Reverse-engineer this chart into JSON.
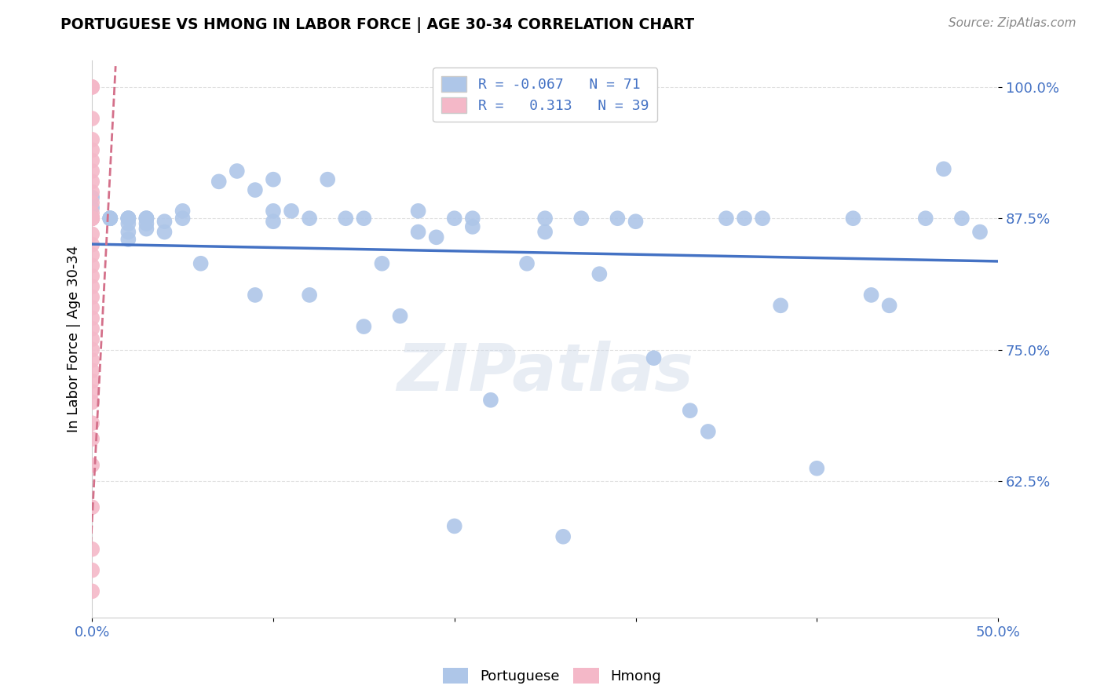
{
  "title": "PORTUGUESE VS HMONG IN LABOR FORCE | AGE 30-34 CORRELATION CHART",
  "source": "Source: ZipAtlas.com",
  "ylabel": "In Labor Force | Age 30-34",
  "xlim": [
    0.0,
    0.5
  ],
  "ylim": [
    0.495,
    1.025
  ],
  "yticks": [
    0.625,
    0.75,
    0.875,
    1.0
  ],
  "ytick_labels": [
    "62.5%",
    "75.0%",
    "87.5%",
    "100.0%"
  ],
  "xticks": [
    0.0,
    0.1,
    0.2,
    0.3,
    0.4,
    0.5
  ],
  "xtick_labels": [
    "0.0%",
    "",
    "",
    "",
    "",
    "50.0%"
  ],
  "legend_R_portuguese": "-0.067",
  "legend_N_portuguese": "71",
  "legend_R_hmong": "0.313",
  "legend_N_hmong": "39",
  "portuguese_color": "#aec6e8",
  "hmong_color": "#f4b8c8",
  "portuguese_line_color": "#4472c4",
  "hmong_line_color": "#d4708a",
  "watermark": "ZIPatlas",
  "portuguese_x": [
    0.0,
    0.0,
    0.0,
    0.01,
    0.01,
    0.01,
    0.01,
    0.02,
    0.02,
    0.02,
    0.02,
    0.02,
    0.02,
    0.02,
    0.03,
    0.03,
    0.03,
    0.03,
    0.03,
    0.04,
    0.04,
    0.05,
    0.05,
    0.06,
    0.07,
    0.08,
    0.09,
    0.09,
    0.1,
    0.1,
    0.1,
    0.11,
    0.12,
    0.12,
    0.13,
    0.14,
    0.15,
    0.15,
    0.16,
    0.17,
    0.18,
    0.18,
    0.19,
    0.2,
    0.2,
    0.21,
    0.21,
    0.22,
    0.24,
    0.25,
    0.25,
    0.26,
    0.27,
    0.28,
    0.29,
    0.3,
    0.31,
    0.33,
    0.34,
    0.35,
    0.36,
    0.37,
    0.38,
    0.4,
    0.42,
    0.43,
    0.44,
    0.46,
    0.47,
    0.48,
    0.49
  ],
  "portuguese_y": [
    0.875,
    0.885,
    0.895,
    0.875,
    0.875,
    0.875,
    0.875,
    0.875,
    0.875,
    0.875,
    0.875,
    0.87,
    0.862,
    0.855,
    0.875,
    0.875,
    0.875,
    0.87,
    0.865,
    0.872,
    0.862,
    0.875,
    0.882,
    0.832,
    0.91,
    0.92,
    0.902,
    0.802,
    0.872,
    0.882,
    0.912,
    0.882,
    0.802,
    0.875,
    0.912,
    0.875,
    0.875,
    0.772,
    0.832,
    0.782,
    0.882,
    0.862,
    0.857,
    0.875,
    0.582,
    0.875,
    0.867,
    0.702,
    0.832,
    0.875,
    0.862,
    0.572,
    0.875,
    0.822,
    0.875,
    0.872,
    0.742,
    0.692,
    0.672,
    0.875,
    0.875,
    0.875,
    0.792,
    0.637,
    0.875,
    0.802,
    0.792,
    0.875,
    0.922,
    0.875,
    0.862
  ],
  "hmong_x": [
    0.0,
    0.0,
    0.0,
    0.0,
    0.0,
    0.0,
    0.0,
    0.0,
    0.0,
    0.0,
    0.0,
    0.0,
    0.0,
    0.0,
    0.0,
    0.0,
    0.0,
    0.0,
    0.0,
    0.0,
    0.0,
    0.0,
    0.0,
    0.0,
    0.0,
    0.0,
    0.0,
    0.0,
    0.0,
    0.0,
    0.0,
    0.0,
    0.0,
    0.0,
    0.0,
    0.0,
    0.0,
    0.0,
    0.0
  ],
  "hmong_y": [
    1.0,
    1.0,
    0.97,
    0.95,
    0.94,
    0.93,
    0.92,
    0.91,
    0.9,
    0.89,
    0.88,
    0.875,
    0.875,
    0.875,
    0.875,
    0.86,
    0.85,
    0.84,
    0.83,
    0.82,
    0.81,
    0.8,
    0.79,
    0.78,
    0.77,
    0.76,
    0.75,
    0.74,
    0.73,
    0.72,
    0.71,
    0.7,
    0.68,
    0.665,
    0.64,
    0.6,
    0.56,
    0.54,
    0.52
  ],
  "background_color": "#ffffff",
  "grid_color": "#e0e0e0"
}
